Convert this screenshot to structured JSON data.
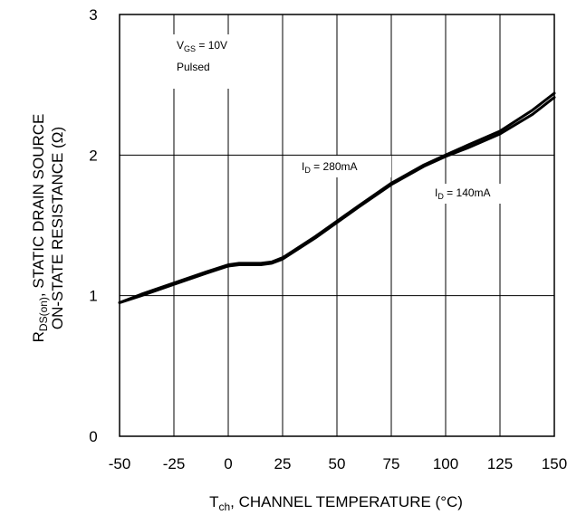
{
  "chart_data": {
    "type": "line",
    "title": "",
    "xlabel": {
      "main": "T",
      "sub": "ch",
      "rest": ", CHANNEL TEMPERATURE (°C)"
    },
    "ylabel": {
      "line1_main": "R",
      "line1_sub": "DS(on)",
      "line1_rest": ", STATIC DRAIN SOURCE",
      "line2": "ON-STATE RESISTANCE (Ω)"
    },
    "xlim": [
      -50,
      150
    ],
    "ylim": [
      0,
      3
    ],
    "xticks": [
      -50,
      -25,
      0,
      25,
      50,
      75,
      100,
      125,
      150
    ],
    "xtick_labels": [
      "-50",
      "-25",
      "0",
      "25",
      "50",
      "75",
      "100",
      "125",
      "150"
    ],
    "yticks": [
      0,
      1,
      2,
      3
    ],
    "ytick_labels": [
      "0",
      "1",
      "2",
      "3"
    ],
    "grid": true,
    "series": [
      {
        "name": "I_D = 280mA",
        "x": [
          -50,
          -40,
          -25,
          -10,
          0,
          5,
          15,
          20,
          25,
          30,
          40,
          50,
          60,
          75,
          90,
          100,
          110,
          125,
          140,
          150
        ],
        "y": [
          0.95,
          1.01,
          1.09,
          1.17,
          1.22,
          1.23,
          1.23,
          1.24,
          1.27,
          1.32,
          1.42,
          1.53,
          1.64,
          1.8,
          1.93,
          2.0,
          2.07,
          2.17,
          2.32,
          2.44
        ]
      },
      {
        "name": "I_D = 140mA",
        "x": [
          -50,
          -40,
          -25,
          -10,
          0,
          5,
          15,
          20,
          25,
          30,
          40,
          50,
          60,
          75,
          90,
          100,
          110,
          125,
          140,
          150
        ],
        "y": [
          0.95,
          1.0,
          1.08,
          1.16,
          1.21,
          1.22,
          1.22,
          1.23,
          1.26,
          1.31,
          1.41,
          1.52,
          1.63,
          1.79,
          1.92,
          1.99,
          2.05,
          2.15,
          2.29,
          2.41
        ]
      }
    ],
    "annotations": {
      "vgs": {
        "main": "V",
        "sub": "GS",
        "rest": " = 10V"
      },
      "pulsed": "Pulsed",
      "id280": {
        "main": "I",
        "sub": "D",
        "rest": " = 280mA"
      },
      "id140": {
        "main": "I",
        "sub": "D",
        "rest": " = 140mA"
      }
    }
  }
}
